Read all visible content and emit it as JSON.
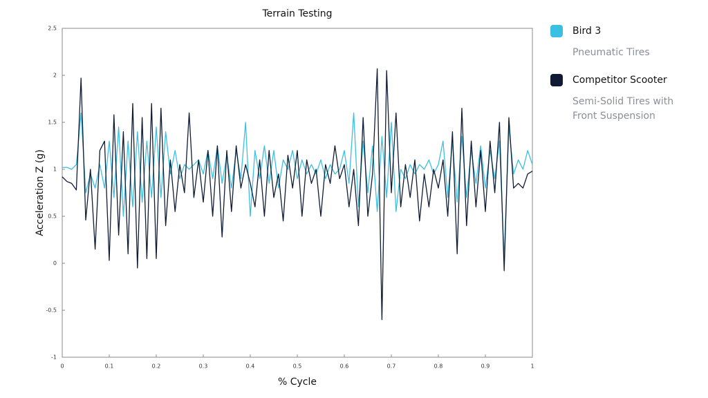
{
  "chart_data": {
    "type": "line",
    "title": "Terrain Testing",
    "xlabel": "% Cycle",
    "ylabel": "Acceleration Z (g)",
    "x": [
      0,
      0.01,
      0.02,
      0.03,
      0.04,
      0.05,
      0.06,
      0.07,
      0.08,
      0.09,
      0.1,
      0.11,
      0.12,
      0.13,
      0.14,
      0.15,
      0.16,
      0.17,
      0.18,
      0.19,
      0.2,
      0.21,
      0.22,
      0.23,
      0.24,
      0.25,
      0.26,
      0.27,
      0.28,
      0.29,
      0.3,
      0.31,
      0.32,
      0.33,
      0.34,
      0.35,
      0.36,
      0.37,
      0.38,
      0.39,
      0.4,
      0.41,
      0.42,
      0.43,
      0.44,
      0.45,
      0.46,
      0.47,
      0.48,
      0.49,
      0.5,
      0.51,
      0.52,
      0.53,
      0.54,
      0.55,
      0.56,
      0.57,
      0.58,
      0.59,
      0.6,
      0.61,
      0.62,
      0.63,
      0.64,
      0.65,
      0.66,
      0.67,
      0.68,
      0.69,
      0.7,
      0.71,
      0.72,
      0.73,
      0.74,
      0.75,
      0.76,
      0.77,
      0.78,
      0.79,
      0.8,
      0.81,
      0.82,
      0.83,
      0.84,
      0.85,
      0.86,
      0.87,
      0.88,
      0.89,
      0.9,
      0.91,
      0.92,
      0.93,
      0.94,
      0.95,
      0.96,
      0.97,
      0.98,
      0.99,
      1
    ],
    "series": [
      {
        "name": "Bird 3",
        "description": "Pneumatic Tires",
        "color": "#3bbfe3",
        "values": [
          1.02,
          1.02,
          1.0,
          1.05,
          1.6,
          0.75,
          0.95,
          0.8,
          1.05,
          0.8,
          1.3,
          0.7,
          1.45,
          0.5,
          1.3,
          0.6,
          1.4,
          0.65,
          1.3,
          0.7,
          1.45,
          0.7,
          1.4,
          0.95,
          1.2,
          0.9,
          1.05,
          1.0,
          1.05,
          1.1,
          0.95,
          1.2,
          0.9,
          1.25,
          0.85,
          1.15,
          0.8,
          1.2,
          0.9,
          1.5,
          0.5,
          1.2,
          0.9,
          1.25,
          0.85,
          1.2,
          0.8,
          1.1,
          1.0,
          1.2,
          0.9,
          1.1,
          0.95,
          1.05,
          0.95,
          1.1,
          0.9,
          1.05,
          0.95,
          1.0,
          1.2,
          0.85,
          1.6,
          0.6,
          1.3,
          0.75,
          1.25,
          0.55,
          1.35,
          0.7,
          1.5,
          0.55,
          1.0,
          0.9,
          1.05,
          0.95,
          1.05,
          1.0,
          1.1,
          0.95,
          1.05,
          1.3,
          0.7,
          1.3,
          0.65,
          1.35,
          0.7,
          1.2,
          0.85,
          1.25,
          0.8,
          1.2,
          0.9,
          1.3,
          0.05,
          1.45,
          0.95,
          1.1,
          1.0,
          1.2,
          1.05
        ]
      },
      {
        "name": "Competitor Scooter",
        "description": "Semi-Solid Tires with Front Suspension",
        "color": "#0e1b33",
        "values": [
          0.92,
          0.87,
          0.85,
          0.78,
          1.97,
          0.46,
          1.0,
          0.15,
          1.2,
          1.3,
          0.03,
          1.58,
          0.3,
          1.4,
          0.1,
          1.7,
          -0.05,
          1.55,
          0.05,
          1.7,
          0.05,
          1.65,
          0.4,
          1.1,
          0.55,
          1.05,
          0.75,
          1.6,
          0.7,
          1.1,
          0.65,
          1.2,
          0.5,
          1.25,
          0.28,
          1.2,
          0.55,
          1.25,
          0.8,
          1.05,
          0.85,
          0.6,
          1.1,
          0.5,
          1.2,
          0.7,
          0.95,
          0.45,
          1.15,
          0.8,
          1.2,
          0.5,
          1.1,
          0.85,
          1.0,
          0.5,
          1.05,
          0.85,
          1.25,
          0.9,
          1.05,
          0.6,
          1.0,
          0.4,
          1.55,
          0.5,
          0.95,
          2.07,
          -0.6,
          2.05,
          0.75,
          1.6,
          0.6,
          1.05,
          0.7,
          1.1,
          0.45,
          0.95,
          0.6,
          1.0,
          0.8,
          1.1,
          0.5,
          1.4,
          0.1,
          1.65,
          0.4,
          1.3,
          0.6,
          1.2,
          0.55,
          1.3,
          0.75,
          1.5,
          -0.08,
          1.55,
          0.8,
          0.85,
          0.8,
          0.95,
          0.98
        ]
      }
    ],
    "xlim": [
      0,
      1
    ],
    "xticks": [
      0,
      0.1,
      0.2,
      0.3,
      0.4,
      0.5,
      0.6,
      0.7,
      0.8,
      0.9,
      1
    ],
    "ylim": [
      -1,
      2.5
    ],
    "yticks": [
      -1,
      -0.5,
      0,
      0.5,
      1,
      1.5,
      2,
      2.5
    ],
    "grid": false
  }
}
